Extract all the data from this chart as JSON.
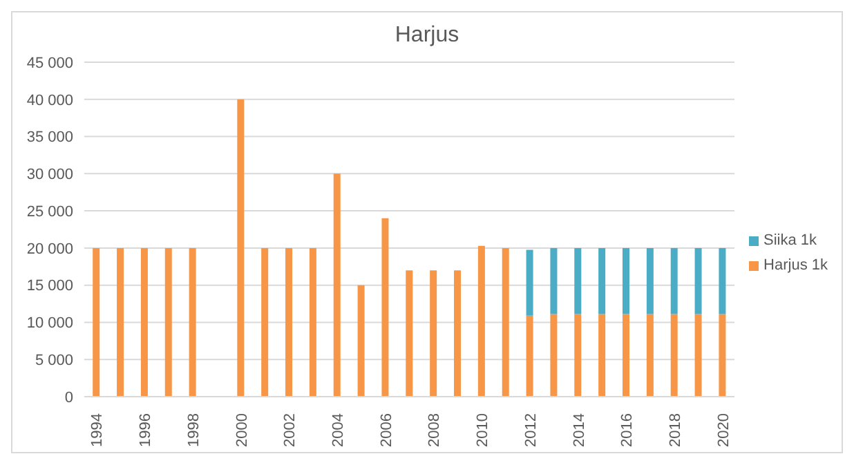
{
  "chart_data": {
    "type": "bar",
    "title": "Harjus",
    "stacked": true,
    "categories": [
      "1994",
      null,
      "1996",
      null,
      "1998",
      null,
      "2000",
      null,
      "2002",
      null,
      "2004",
      null,
      "2006",
      null,
      "2008",
      null,
      "2010",
      null,
      "2012",
      null,
      "2014",
      null,
      "2016",
      null,
      "2018",
      null,
      "2020"
    ],
    "series": [
      {
        "name": "Harjus 1k",
        "color": "#f79646",
        "values": [
          20000,
          20000,
          20000,
          20000,
          20000,
          null,
          40000,
          20000,
          20000,
          20000,
          30000,
          15000,
          24000,
          17000,
          17000,
          17000,
          20300,
          20000,
          10900,
          11100,
          11100,
          11100,
          11100,
          11100,
          11100,
          11100,
          11100
        ]
      },
      {
        "name": "Siika 1k",
        "color": "#4bacc6",
        "values": [
          null,
          null,
          null,
          null,
          null,
          null,
          null,
          null,
          null,
          null,
          null,
          null,
          null,
          null,
          null,
          null,
          null,
          null,
          8850,
          8900,
          8900,
          8900,
          8900,
          8900,
          8900,
          8900,
          8900
        ]
      }
    ],
    "ylim": [
      0,
      45000
    ],
    "yticks": [
      {
        "value": 0,
        "label": "0"
      },
      {
        "value": 5000,
        "label": "5 000"
      },
      {
        "value": 10000,
        "label": "10 000"
      },
      {
        "value": 15000,
        "label": "15 000"
      },
      {
        "value": 20000,
        "label": "20 000"
      },
      {
        "value": 25000,
        "label": "25 000"
      },
      {
        "value": 30000,
        "label": "30 000"
      },
      {
        "value": 35000,
        "label": "35 000"
      },
      {
        "value": 40000,
        "label": "40 000"
      },
      {
        "value": 45000,
        "label": "45 000"
      }
    ],
    "grid": "y",
    "legend": "right"
  }
}
